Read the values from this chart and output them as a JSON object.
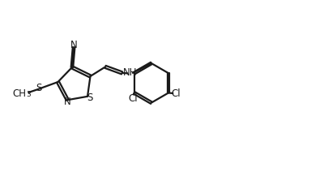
{
  "bg_color": "#ffffff",
  "line_color": "#1a1a1a",
  "line_width": 1.6,
  "font_size": 8.5,
  "figsize": [
    3.84,
    2.12
  ],
  "xlim": [
    0,
    3.84
  ],
  "ylim": [
    0,
    2.12
  ]
}
